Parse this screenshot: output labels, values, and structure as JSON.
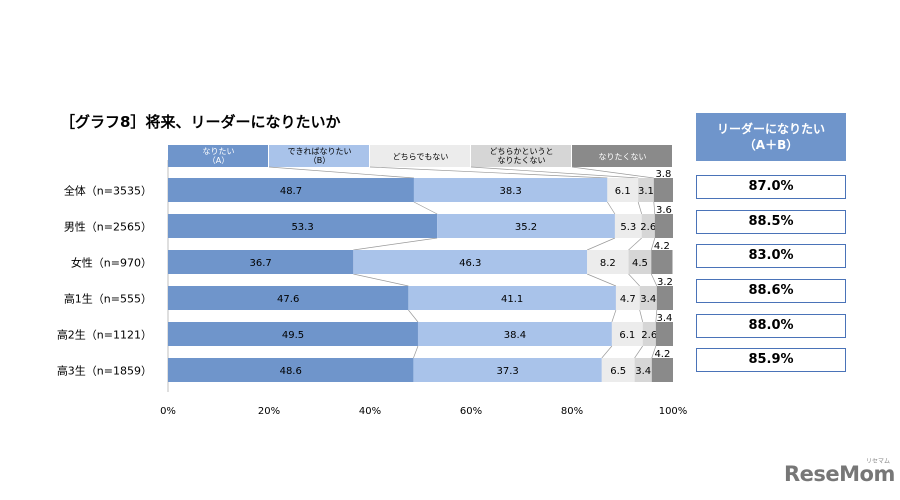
{
  "title": "［グラフ8］将来、リーダーになりたいか",
  "summary": {
    "header_line1": "リーダーになりたい",
    "header_line2": "（A＋B）",
    "values": [
      "87.0%",
      "88.5%",
      "83.0%",
      "88.6%",
      "88.0%",
      "85.9%"
    ]
  },
  "brand": {
    "name": "ReseMom",
    "sub": "リセマム"
  },
  "colors": {
    "series": [
      "#6f95cb",
      "#a9c3ea",
      "#ececec",
      "#d6d6d6",
      "#8a8a8a"
    ],
    "header_bg": "#6f95cb",
    "box_border": "#4a73b8"
  },
  "chart_data": {
    "type": "bar",
    "orientation": "horizontal",
    "stacked": true,
    "categories": [
      "全体（n=3535）",
      "男性（n=2565）",
      "女性（n=970）",
      "高1生（n=555）",
      "高2生（n=1121）",
      "高3生（n=1859）"
    ],
    "series": [
      {
        "name": "なりたい\n（A）",
        "values": [
          48.7,
          53.3,
          36.7,
          47.6,
          49.5,
          48.6
        ]
      },
      {
        "name": "できればなりたい\n（B）",
        "values": [
          38.3,
          35.2,
          46.3,
          41.1,
          38.4,
          37.3
        ]
      },
      {
        "name": "どちらでもない",
        "values": [
          6.1,
          5.3,
          8.2,
          4.7,
          6.1,
          6.5
        ]
      },
      {
        "name": "どちらかというと\nなりたくない",
        "values": [
          3.1,
          2.6,
          4.5,
          3.4,
          2.6,
          3.4
        ]
      },
      {
        "name": "なりたくない",
        "values": [
          3.8,
          3.6,
          4.2,
          3.2,
          3.4,
          4.2
        ]
      }
    ],
    "xlim": [
      0,
      100
    ],
    "xticks": [
      "0%",
      "20%",
      "40%",
      "60%",
      "80%",
      "100%"
    ],
    "legend": "top"
  }
}
